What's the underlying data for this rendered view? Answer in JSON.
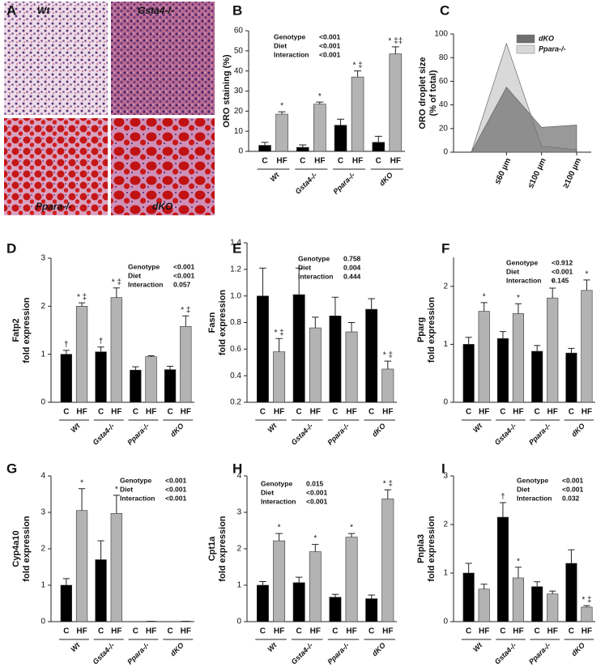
{
  "panel_a": {
    "label": "A",
    "images": [
      "Wt",
      "Gsta4-/-",
      "Ppara-/-",
      "dKO"
    ]
  },
  "chart_data": [
    {
      "type": "bar",
      "panel": "B",
      "ylabel": [
        "ORO staining (%)"
      ],
      "categories": [
        "C",
        "HF",
        "C",
        "HF",
        "C",
        "HF",
        "C",
        "HF"
      ],
      "groups": [
        "Wt",
        "Gsta4-/-",
        "Ppara-/-",
        "dKO"
      ],
      "values": [
        3,
        18.5,
        2,
        23.5,
        13,
        37,
        4.5,
        48.5
      ],
      "errors": [
        1.5,
        1.2,
        1.2,
        1,
        3,
        3,
        3,
        3.5
      ],
      "bar_labels": [
        null,
        "*",
        null,
        "*",
        null,
        "* ‡",
        null,
        "* ‡‡"
      ],
      "colors": [
        "#000000",
        "#b3b3b3"
      ],
      "ylim": [
        0,
        60
      ],
      "yticks": [
        0,
        10,
        20,
        30,
        40,
        50,
        60
      ],
      "stats": [
        {
          "name": "Genotype",
          "value": "<0.001"
        },
        {
          "name": "Diet",
          "value": "<0.001"
        },
        {
          "name": "Interaction",
          "value": "<0.001"
        }
      ]
    },
    {
      "type": "area",
      "panel": "C",
      "ylabel": [
        "ORO droplet size",
        "(% of total)"
      ],
      "categories": [
        null,
        "≤60 µm",
        "≤100 µm",
        "≥100 µm"
      ],
      "series": [
        {
          "name": "dKO",
          "color": "#6e6e6e",
          "values": [
            0,
            55,
            21,
            23
          ]
        },
        {
          "name": "Ppara-/-",
          "color": "#d9d9d9",
          "values": [
            0,
            92,
            5,
            2
          ]
        }
      ],
      "ylim": [
        0,
        100
      ],
      "yticks": [
        0,
        20,
        40,
        60,
        80,
        100
      ],
      "legend": "top-right"
    },
    {
      "type": "bar",
      "panel": "D",
      "ylabel": [
        "Fatp2",
        "fold expression"
      ],
      "categories": [
        "C",
        "HF",
        "C",
        "HF",
        "C",
        "HF",
        "C",
        "HF"
      ],
      "groups": [
        "Wt",
        "Gsta4-/-",
        "Ppara-/-",
        "dKO"
      ],
      "values": [
        1.0,
        2.0,
        1.05,
        2.18,
        0.67,
        0.95,
        0.68,
        1.58
      ],
      "errors": [
        0.08,
        0.07,
        0.1,
        0.2,
        0.07,
        0.02,
        0.07,
        0.22
      ],
      "bar_labels": [
        "†",
        "* ‡",
        "†",
        "* ‡",
        null,
        null,
        null,
        "* ‡"
      ],
      "colors": [
        "#000000",
        "#b3b3b3"
      ],
      "ylim": [
        0,
        3
      ],
      "yticks": [
        0,
        1,
        2,
        3
      ],
      "stats": [
        {
          "name": "Genotype",
          "value": "<0.001"
        },
        {
          "name": "Diet",
          "value": "<0.001"
        },
        {
          "name": "Interaction",
          "value": "0.057"
        }
      ]
    },
    {
      "type": "bar",
      "panel": "E",
      "ylabel": [
        "Fasn",
        "fold expression"
      ],
      "categories": [
        "C",
        "HF",
        "C",
        "HF",
        "C",
        "HF",
        "C",
        "HF"
      ],
      "groups": [
        "Wt",
        "Gsta4-/-",
        "Ppara-/-",
        "dKO"
      ],
      "values": [
        1.0,
        0.58,
        1.01,
        0.76,
        0.85,
        0.73,
        0.9,
        0.45
      ],
      "errors": [
        0.21,
        0.1,
        0.2,
        0.08,
        0.14,
        0.07,
        0.08,
        0.06
      ],
      "bar_labels": [
        null,
        "* ‡",
        null,
        null,
        null,
        null,
        null,
        "* ‡"
      ],
      "colors": [
        "#000000",
        "#b3b3b3"
      ],
      "ylim": [
        0.2,
        1.4
      ],
      "yticks": [
        0.2,
        0.4,
        0.6,
        0.8,
        {
          "value": 1,
          "label": "1.0"
        },
        1.2,
        1.4
      ],
      "stats": [
        {
          "name": "Genotype",
          "value": "0.758"
        },
        {
          "name": "Diet",
          "value": "0.004"
        },
        {
          "name": "Interaction",
          "value": "0.444"
        }
      ]
    },
    {
      "type": "bar",
      "panel": "F",
      "ylabel": [
        "Pparg",
        "fold expression"
      ],
      "categories": [
        "C",
        "HF",
        "C",
        "HF",
        "C",
        "HF",
        "C",
        "HF"
      ],
      "groups": [
        "Wt",
        "Gsta4-/-",
        "Ppara-/-",
        "dKO"
      ],
      "values": [
        1.0,
        1.57,
        1.1,
        1.53,
        0.88,
        1.8,
        0.85,
        1.93
      ],
      "errors": [
        0.12,
        0.15,
        0.12,
        0.17,
        0.1,
        0.17,
        0.08,
        0.18
      ],
      "bar_labels": [
        null,
        "*",
        null,
        "*",
        null,
        "*",
        null,
        "*"
      ],
      "colors": [
        "#000000",
        "#b3b3b3"
      ],
      "ylim": [
        0,
        2.5
      ],
      "yticks": [
        0,
        1,
        2
      ],
      "stats": [
        {
          "name": "Genotype",
          "value": "<0.912"
        },
        {
          "name": "Diet",
          "value": "<0.001"
        },
        {
          "name": "Interaction",
          "value": "0.145"
        }
      ]
    },
    {
      "type": "bar",
      "panel": "G",
      "ylabel": [
        "Cyp4a10",
        "fold expression"
      ],
      "categories": [
        "C",
        "HF",
        "C",
        "HF",
        "C",
        "HF",
        "C",
        "HF"
      ],
      "groups": [
        "Wt",
        "Gsta4-/-",
        "Ppara-/-",
        "dKO"
      ],
      "values": [
        1.0,
        3.05,
        1.7,
        2.97,
        0,
        0.01,
        0,
        0.01
      ],
      "errors": [
        0.18,
        0.6,
        0.52,
        0.5,
        0,
        0,
        0,
        0
      ],
      "bar_labels": [
        null,
        "*",
        null,
        "*",
        null,
        null,
        null,
        null
      ],
      "colors": [
        "#000000",
        "#b3b3b3"
      ],
      "ylim": [
        0,
        4
      ],
      "yticks": [
        0,
        1,
        2,
        3,
        4
      ],
      "stats": [
        {
          "name": "Genotype",
          "value": "<0.001"
        },
        {
          "name": "Diet",
          "value": "<0.001"
        },
        {
          "name": "Interaction",
          "value": "<0.001"
        }
      ]
    },
    {
      "type": "bar",
      "panel": "H",
      "ylabel": [
        "Cpt1a",
        "fold expression"
      ],
      "categories": [
        "C",
        "HF",
        "C",
        "HF",
        "C",
        "HF",
        "C",
        "HF"
      ],
      "groups": [
        "Wt",
        "Gsta4-/-",
        "Ppara-/-",
        "dKO"
      ],
      "values": [
        1.0,
        2.22,
        1.07,
        1.92,
        0.67,
        2.32,
        0.63,
        3.37
      ],
      "errors": [
        0.1,
        0.2,
        0.15,
        0.2,
        0.08,
        0.1,
        0.1,
        0.25
      ],
      "bar_labels": [
        null,
        "*",
        null,
        "*",
        null,
        "*",
        null,
        "* ‡"
      ],
      "colors": [
        "#000000",
        "#b3b3b3"
      ],
      "ylim": [
        0,
        4
      ],
      "yticks": [
        0,
        1,
        2,
        3,
        4
      ],
      "stats": [
        {
          "name": "Genotype",
          "value": "0.015"
        },
        {
          "name": "Diet",
          "value": "<0.001"
        },
        {
          "name": "Interaction",
          "value": "<0.001"
        }
      ]
    },
    {
      "type": "bar",
      "panel": "I",
      "ylabel": [
        "Pnpla3",
        "fold expression"
      ],
      "categories": [
        "C",
        "HF",
        "C",
        "HF",
        "C",
        "HF",
        "C",
        "HF"
      ],
      "groups": [
        "Wt",
        "Gsta4-/-",
        "Ppara-/-",
        "dKO"
      ],
      "values": [
        1.0,
        0.67,
        2.15,
        0.9,
        0.72,
        0.57,
        1.2,
        0.3
      ],
      "errors": [
        0.2,
        0.1,
        0.3,
        0.22,
        0.1,
        0.06,
        0.28,
        0.03
      ],
      "bar_labels": [
        null,
        null,
        "†",
        "*",
        null,
        null,
        null,
        "* ‡"
      ],
      "colors": [
        "#000000",
        "#b3b3b3"
      ],
      "ylim": [
        0,
        3
      ],
      "yticks": [
        0,
        1,
        2,
        3
      ],
      "stats": [
        {
          "name": "Genotype",
          "value": "<0.001"
        },
        {
          "name": "Diet",
          "value": "<0.001"
        },
        {
          "name": "Interaction",
          "value": "0.032"
        }
      ]
    }
  ]
}
